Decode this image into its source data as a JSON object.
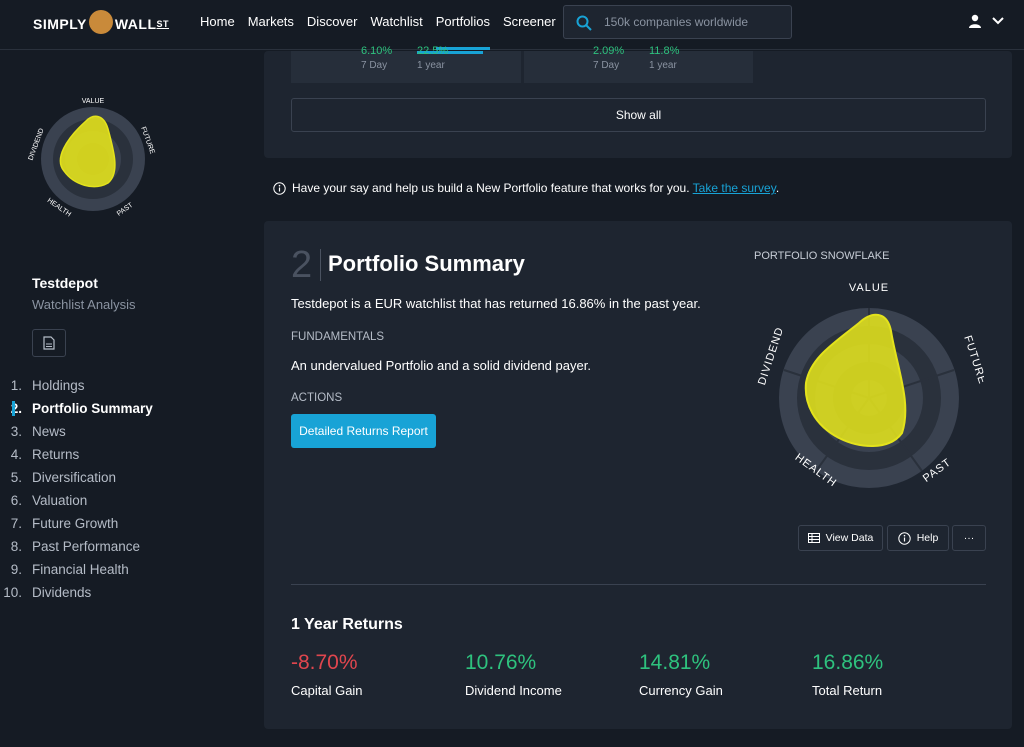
{
  "header": {
    "logo_text": "SIMPLY WALL ST",
    "logo_left": "SIMPLY",
    "logo_right": "WALL",
    "logo_sup": "ST",
    "nav": [
      "Home",
      "Markets",
      "Discover",
      "Watchlist",
      "Portfolios",
      "Screener"
    ],
    "active_nav": "Portfolios",
    "search_placeholder": "150k companies worldwide"
  },
  "sidebar": {
    "snowflake_labels": {
      "value": "VALUE",
      "future": "FUTURE",
      "past": "PAST",
      "health": "HEALTH",
      "dividend": "DIVIDEND"
    },
    "portfolio_name": "Testdepot",
    "portfolio_type": "Watchlist Analysis",
    "items": [
      {
        "num": "1.",
        "label": "Holdings"
      },
      {
        "num": "2.",
        "label": "Portfolio Summary"
      },
      {
        "num": "3.",
        "label": "News"
      },
      {
        "num": "4.",
        "label": "Returns"
      },
      {
        "num": "5.",
        "label": "Diversification"
      },
      {
        "num": "6.",
        "label": "Valuation"
      },
      {
        "num": "7.",
        "label": "Future Growth"
      },
      {
        "num": "8.",
        "label": "Past Performance"
      },
      {
        "num": "9.",
        "label": "Financial Health"
      },
      {
        "num": "10.",
        "label": "Dividends"
      }
    ],
    "active_item": "Portfolio Summary"
  },
  "top_card": {
    "stats": [
      {
        "value": "6.10%",
        "label": "7 Day"
      },
      {
        "value": "22.5%",
        "label": "1 year"
      },
      {
        "value": "2.09%",
        "label": "7 Day"
      },
      {
        "value": "11.8%",
        "label": "1 year"
      }
    ],
    "show_all_label": "Show all"
  },
  "survey": {
    "text": "Have your say and help us build a New Portfolio feature that works for you.",
    "link": "Take the survey",
    "suffix": "."
  },
  "summary": {
    "section_number": "2",
    "title": "Portfolio Summary",
    "description": "Testdepot is a EUR watchlist that has returned 16.86% in the past year.",
    "fundamentals_heading": "FUNDAMENTALS",
    "fundamentals_text": "An undervalued Portfolio and a solid dividend payer.",
    "actions_heading": "ACTIONS",
    "report_button": "Detailed Returns Report",
    "snowflake_title": "PORTFOLIO SNOWFLAKE",
    "buttons": {
      "view_data": "View Data",
      "help": "Help",
      "more": "···"
    }
  },
  "returns": {
    "title": "1 Year Returns",
    "items": [
      {
        "value": "-8.70%",
        "label": "Capital Gain",
        "color": "#e0464e"
      },
      {
        "value": "10.76%",
        "label": "Dividend Income",
        "color": "#2ec27e"
      },
      {
        "value": "14.81%",
        "label": "Currency Gain",
        "color": "#2ec27e"
      },
      {
        "value": "16.86%",
        "label": "Total Return",
        "color": "#2ec27e"
      }
    ]
  },
  "colors": {
    "accent": "#18a3d6",
    "snowflake_fill": "#e3e21c",
    "positive": "#2ec27e",
    "negative": "#e0464e"
  }
}
